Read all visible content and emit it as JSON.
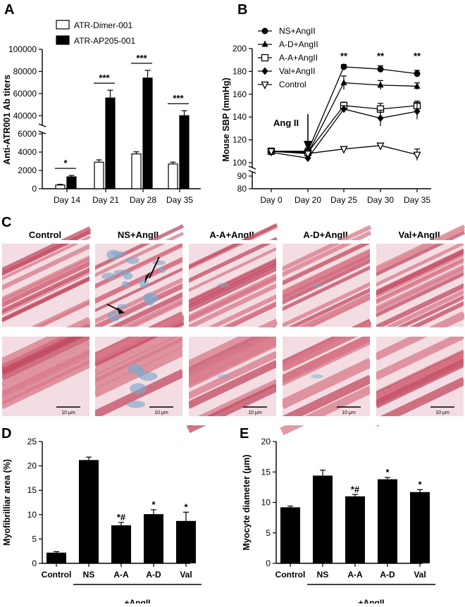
{
  "figure": {
    "panel_labels": [
      "A",
      "B",
      "C",
      "D",
      "E"
    ]
  },
  "panel_c": {
    "column_labels": [
      "Control",
      "NS+AngII",
      "A-A+AngII",
      "A-D+AngII",
      "Val+AngII"
    ],
    "scale_bar_text": "10 μm",
    "stain_colors": {
      "muscle": "#d8788a",
      "muscle_dark": "#c24a62",
      "fibrosis": "#7fa7c8",
      "background": "#f3dde2"
    }
  },
  "chart_data": [
    {
      "panel": "A",
      "type": "bar",
      "categories": [
        "Day 14",
        "Day 21",
        "Day 28",
        "Day 35"
      ],
      "series": [
        {
          "name": "ATR-Dimer-001",
          "fill": "#ffffff",
          "values": [
            400,
            2900,
            3800,
            2700
          ],
          "errors": [
            80,
            250,
            230,
            200
          ]
        },
        {
          "name": "ATR-AP205-001",
          "fill": "#000000",
          "values": [
            1300,
            56000,
            74000,
            40000
          ],
          "errors": [
            150,
            7000,
            7000,
            4500
          ]
        }
      ],
      "significance": [
        "*",
        "***",
        "***",
        "***"
      ],
      "ylabel": "Anti-ATR001 Ab titers",
      "y_lower_range": [
        0,
        6000
      ],
      "y_upper_range": [
        30000,
        100000
      ],
      "y_lower_ticks": [
        "0",
        "2000",
        "4000",
        "6000"
      ],
      "y_upper_ticks": [
        "40000",
        "60000",
        "80000",
        "100000"
      ]
    },
    {
      "panel": "B",
      "type": "line",
      "x": [
        "Day 0",
        "Day 20",
        "Day 25",
        "Day 30",
        "Day 35"
      ],
      "series": [
        {
          "name": "NS+AngII",
          "marker": "circle",
          "values": [
            110,
            110,
            184,
            182,
            178
          ],
          "errors": [
            2,
            3,
            2,
            3,
            3
          ]
        },
        {
          "name": "A-D+AngII",
          "marker": "triangle",
          "values": [
            110,
            108,
            170,
            168,
            167
          ],
          "errors": [
            2,
            4,
            6,
            4,
            3
          ]
        },
        {
          "name": "A-A+AngII",
          "marker": "square-open",
          "values": [
            110,
            109,
            150,
            147,
            150
          ],
          "errors": [
            2,
            3,
            3,
            5,
            4
          ]
        },
        {
          "name": "Val+AngII",
          "marker": "diamond",
          "values": [
            109,
            104,
            147,
            139,
            145
          ],
          "errors": [
            2,
            2,
            3,
            7,
            7
          ]
        },
        {
          "name": "Control",
          "marker": "triangle-down-open",
          "values": [
            110,
            108,
            112,
            115,
            107
          ],
          "errors": [
            2,
            3,
            2,
            2,
            5
          ]
        }
      ],
      "significance": [
        {
          "x": "Day 25",
          "text": "**"
        },
        {
          "x": "Day 30",
          "text": "**"
        },
        {
          "x": "Day 35",
          "text": "**"
        }
      ],
      "annotation": "Ang II",
      "ylabel": "Mouse SBP (mmHg)",
      "y_upper_range": [
        100,
        200
      ],
      "y_lower_range": [
        80,
        90
      ],
      "y_ticks": [
        "80",
        "90",
        "100",
        "120",
        "140",
        "160",
        "180",
        "200"
      ]
    },
    {
      "panel": "D",
      "type": "bar",
      "categories": [
        "Control",
        "NS",
        "A-A",
        "A-D",
        "Val"
      ],
      "values": [
        2.2,
        21.2,
        7.8,
        10.1,
        8.7
      ],
      "errors": [
        0.2,
        0.6,
        0.6,
        0.9,
        1.8
      ],
      "significance": [
        "",
        "",
        "*#",
        "*",
        "*"
      ],
      "group_label": "+AngII",
      "ylabel": "Myofibrilliar area (%)",
      "ylim": [
        0,
        25
      ],
      "y_ticks": [
        "0",
        "5",
        "10",
        "15",
        "20",
        "25"
      ]
    },
    {
      "panel": "E",
      "type": "bar",
      "categories": [
        "Control",
        "NS",
        "A-A",
        "A-D",
        "Val"
      ],
      "values": [
        9.2,
        14.4,
        11.0,
        13.8,
        11.7
      ],
      "errors": [
        0.2,
        0.9,
        0.3,
        0.3,
        0.4
      ],
      "significance": [
        "",
        "",
        "*#",
        "*",
        "*"
      ],
      "group_label": "+AngII",
      "ylabel": "Myocyte diameter (μm)",
      "ylim": [
        0,
        20
      ],
      "y_ticks": [
        "0",
        "5",
        "10",
        "15",
        "20"
      ]
    }
  ]
}
